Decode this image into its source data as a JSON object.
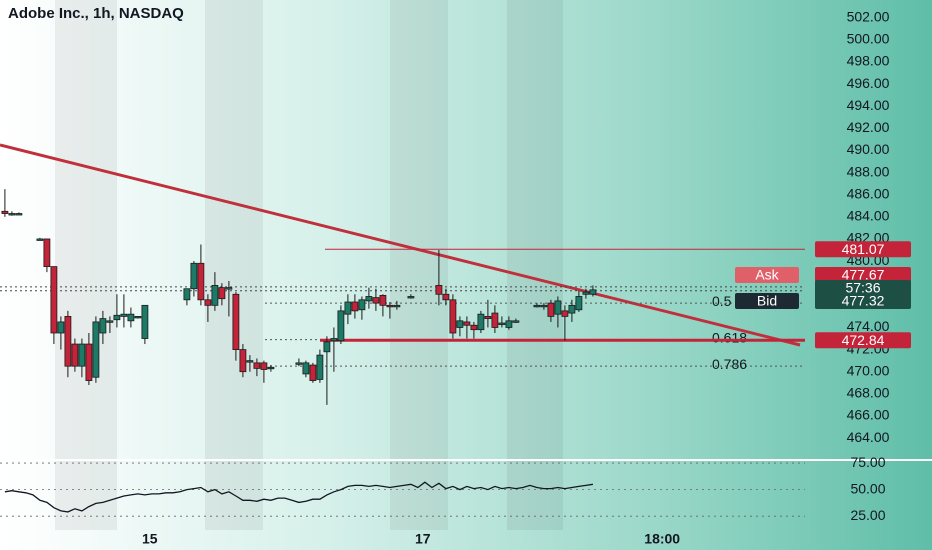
{
  "header": {
    "title": "Adobe Inc., 1h, NASDAQ"
  },
  "chart_data": {
    "type": "candlestick",
    "categories": [
      null,
      null,
      null,
      null,
      null,
      null,
      null,
      null,
      null,
      null,
      null,
      null,
      null,
      null,
      null,
      null,
      null,
      null,
      null,
      null,
      null,
      null,
      null,
      null,
      null,
      null,
      null,
      null,
      null,
      null,
      null,
      null,
      null,
      null,
      null,
      null,
      null,
      null,
      null,
      null,
      null,
      null,
      null,
      null,
      null,
      null,
      null,
      null,
      null,
      null,
      null,
      null,
      null,
      null,
      null,
      null,
      null,
      null,
      null,
      null,
      null,
      null,
      null,
      null,
      null,
      null,
      null,
      null,
      null,
      null,
      null,
      null,
      null,
      null,
      null,
      null,
      null,
      null,
      null,
      null,
      null,
      null,
      null,
      null,
      null
    ],
    "open": [
      484.5,
      484.3,
      484.3,
      null,
      null,
      482,
      482,
      479.5,
      473.5,
      475,
      472.5,
      470.5,
      472.5,
      469.5,
      473.5,
      474.5,
      474.7,
      475,
      474.6,
      475,
      473,
      null,
      null,
      null,
      null,
      null,
      476.5,
      477.5,
      479.8,
      476.5,
      476,
      477.6,
      477.5,
      477,
      472,
      471,
      470.8,
      470.8,
      470.4,
      null,
      null,
      null,
      470.8,
      469.8,
      470.6,
      469.3,
      471.8,
      472.8,
      472.8,
      475.2,
      476.3,
      475.6,
      476.4,
      476.7,
      476.9,
      476,
      476,
      null,
      476.8,
      null,
      null,
      null,
      477.8,
      477,
      476.5,
      474,
      474.5,
      474.2,
      473.8,
      475,
      475.3,
      474.3,
      474,
      474.6,
      null,
      null,
      476,
      475.9,
      476.2,
      475.2,
      475.5,
      475.3,
      475.6,
      477,
      477
    ],
    "high": [
      486.5,
      484.5,
      484.4,
      null,
      null,
      482.1,
      482,
      479.5,
      475,
      475.5,
      473,
      473,
      473.5,
      475,
      475.5,
      475,
      477,
      477,
      475.8,
      475,
      476,
      null,
      null,
      null,
      null,
      null,
      477.5,
      480,
      481.5,
      477,
      479,
      478,
      478.2,
      477.2,
      472.5,
      471.5,
      471.2,
      471,
      470.6,
      null,
      null,
      null,
      471.2,
      471,
      470.8,
      472,
      473.2,
      474,
      476,
      477,
      477,
      476.8,
      477.6,
      477.5,
      477,
      476.3,
      476.4,
      null,
      477,
      null,
      null,
      null,
      481,
      477.5,
      477,
      475,
      475,
      474.5,
      475.5,
      476.5,
      476,
      475,
      475,
      474.8,
      null,
      null,
      476.2,
      476.2,
      476.5,
      476.8,
      476,
      476.5,
      477.3,
      477.5,
      477.8
    ],
    "low": [
      484,
      484.1,
      484.2,
      null,
      null,
      481.9,
      479,
      472.5,
      472,
      469.5,
      470,
      469.5,
      468.8,
      469,
      472.5,
      473.5,
      474,
      474,
      474,
      474.8,
      472.5,
      null,
      null,
      null,
      null,
      null,
      476,
      476.8,
      476,
      474.5,
      475.5,
      476,
      475,
      471,
      469.5,
      470,
      469.6,
      469,
      470,
      null,
      null,
      null,
      470.5,
      469.5,
      469,
      469,
      467,
      470,
      472.5,
      474.3,
      474.8,
      474.7,
      475.7,
      475.5,
      475,
      474.8,
      475.6,
      null,
      476.6,
      null,
      null,
      null,
      476,
      476,
      473,
      473.2,
      473,
      473,
      473.5,
      474,
      473.5,
      474,
      473.8,
      474.4,
      null,
      null,
      475.8,
      475.6,
      474.5,
      474,
      472.8,
      474.5,
      475.4,
      476.6,
      476.8
    ],
    "close": [
      484.3,
      484.3,
      484.3,
      null,
      null,
      482,
      479.5,
      473.5,
      474.5,
      470.5,
      470.5,
      472.5,
      469.2,
      474.5,
      474.8,
      474.6,
      475.1,
      475.2,
      475.2,
      475,
      476,
      null,
      null,
      null,
      null,
      null,
      477.5,
      479.8,
      476.5,
      476,
      477.8,
      476.6,
      477.6,
      472,
      470,
      471,
      470.3,
      470.2,
      470.4,
      null,
      null,
      null,
      470.8,
      470.8,
      469.2,
      471.5,
      472.7,
      473,
      475.5,
      476.3,
      475.5,
      476.5,
      476.8,
      476.2,
      476,
      475.9,
      476,
      null,
      476.8,
      null,
      null,
      null,
      477,
      476.5,
      473.5,
      474.6,
      474.2,
      473.8,
      475.2,
      474.8,
      474,
      474.4,
      474.6,
      474.6,
      null,
      null,
      476,
      476,
      475,
      476.4,
      475,
      476,
      476.8,
      477.2,
      477.4
    ],
    "up_color": "#1d7a66",
    "down_color": "#c4243a",
    "xlim": [
      -0.7,
      114.3
    ],
    "ylim": [
      462.2,
      503.6
    ],
    "xticks": [
      {
        "value": 20.7,
        "label": "15"
      },
      {
        "value": 59.7,
        "label": "17"
      },
      {
        "value": 93.9,
        "label": "18:00"
      }
    ],
    "yticks": [
      {
        "value": 464,
        "label": "464.00"
      },
      {
        "value": 466,
        "label": "466.00"
      },
      {
        "value": 468,
        "label": "468.00"
      },
      {
        "value": 470,
        "label": "470.00"
      },
      {
        "value": 472,
        "label": "472.00"
      },
      {
        "value": 474,
        "label": "474.00"
      },
      {
        "value": 476,
        "label": "476.00"
      },
      {
        "value": 478,
        "label": "478.00"
      },
      {
        "value": 480,
        "label": "480.00"
      },
      {
        "value": 482,
        "label": "482.00"
      },
      {
        "value": 484,
        "label": "484.00"
      },
      {
        "value": 486,
        "label": "486.00"
      },
      {
        "value": 488,
        "label": "488.00"
      },
      {
        "value": 490,
        "label": "490.00"
      },
      {
        "value": 492,
        "label": "492.00"
      },
      {
        "value": 494,
        "label": "494.00"
      },
      {
        "value": 496,
        "label": "496.00"
      },
      {
        "value": 498,
        "label": "498.00"
      },
      {
        "value": 500,
        "label": "500.00"
      },
      {
        "value": 502,
        "label": "502.00"
      }
    ],
    "fib_levels": [
      {
        "level": 0.5,
        "price": 476.2
      },
      {
        "level": 0.618,
        "price": 472.9
      },
      {
        "level": 0.786,
        "price": 470.5
      }
    ],
    "levels": [
      {
        "value": 481.07,
        "color": "#c4243a"
      },
      {
        "value": 472.84,
        "color": "#c4243a"
      }
    ],
    "ask": {
      "name": "Ask",
      "value": 477.67
    },
    "bid": {
      "name": "Bid",
      "value": 477.32
    },
    "countdown": "57:36",
    "oscillator": {
      "color": "#131722",
      "ylim": [
        12,
        76
      ],
      "yticks": [
        {
          "value": 25,
          "label": "25.00"
        },
        {
          "value": 50,
          "label": "50.00"
        },
        {
          "value": 75,
          "label": "75.00"
        }
      ],
      "values": [
        48,
        49,
        48,
        47,
        45,
        40,
        38,
        33,
        30,
        29,
        32,
        30,
        34,
        37,
        38,
        40,
        42,
        44,
        45,
        46,
        45,
        46,
        46,
        47,
        47,
        48,
        50,
        51,
        52,
        48,
        50,
        46,
        48,
        44,
        40,
        40,
        39,
        41,
        40,
        42,
        42,
        40,
        38,
        39,
        41,
        41,
        45,
        48,
        50,
        53,
        54,
        54,
        53,
        54,
        53,
        52,
        53,
        54,
        55,
        52,
        57,
        52,
        56,
        51,
        53,
        50,
        53,
        51,
        52,
        50,
        53,
        51,
        52,
        51,
        52,
        54,
        52,
        51,
        51,
        52,
        51,
        52,
        53,
        54,
        55
      ]
    }
  }
}
